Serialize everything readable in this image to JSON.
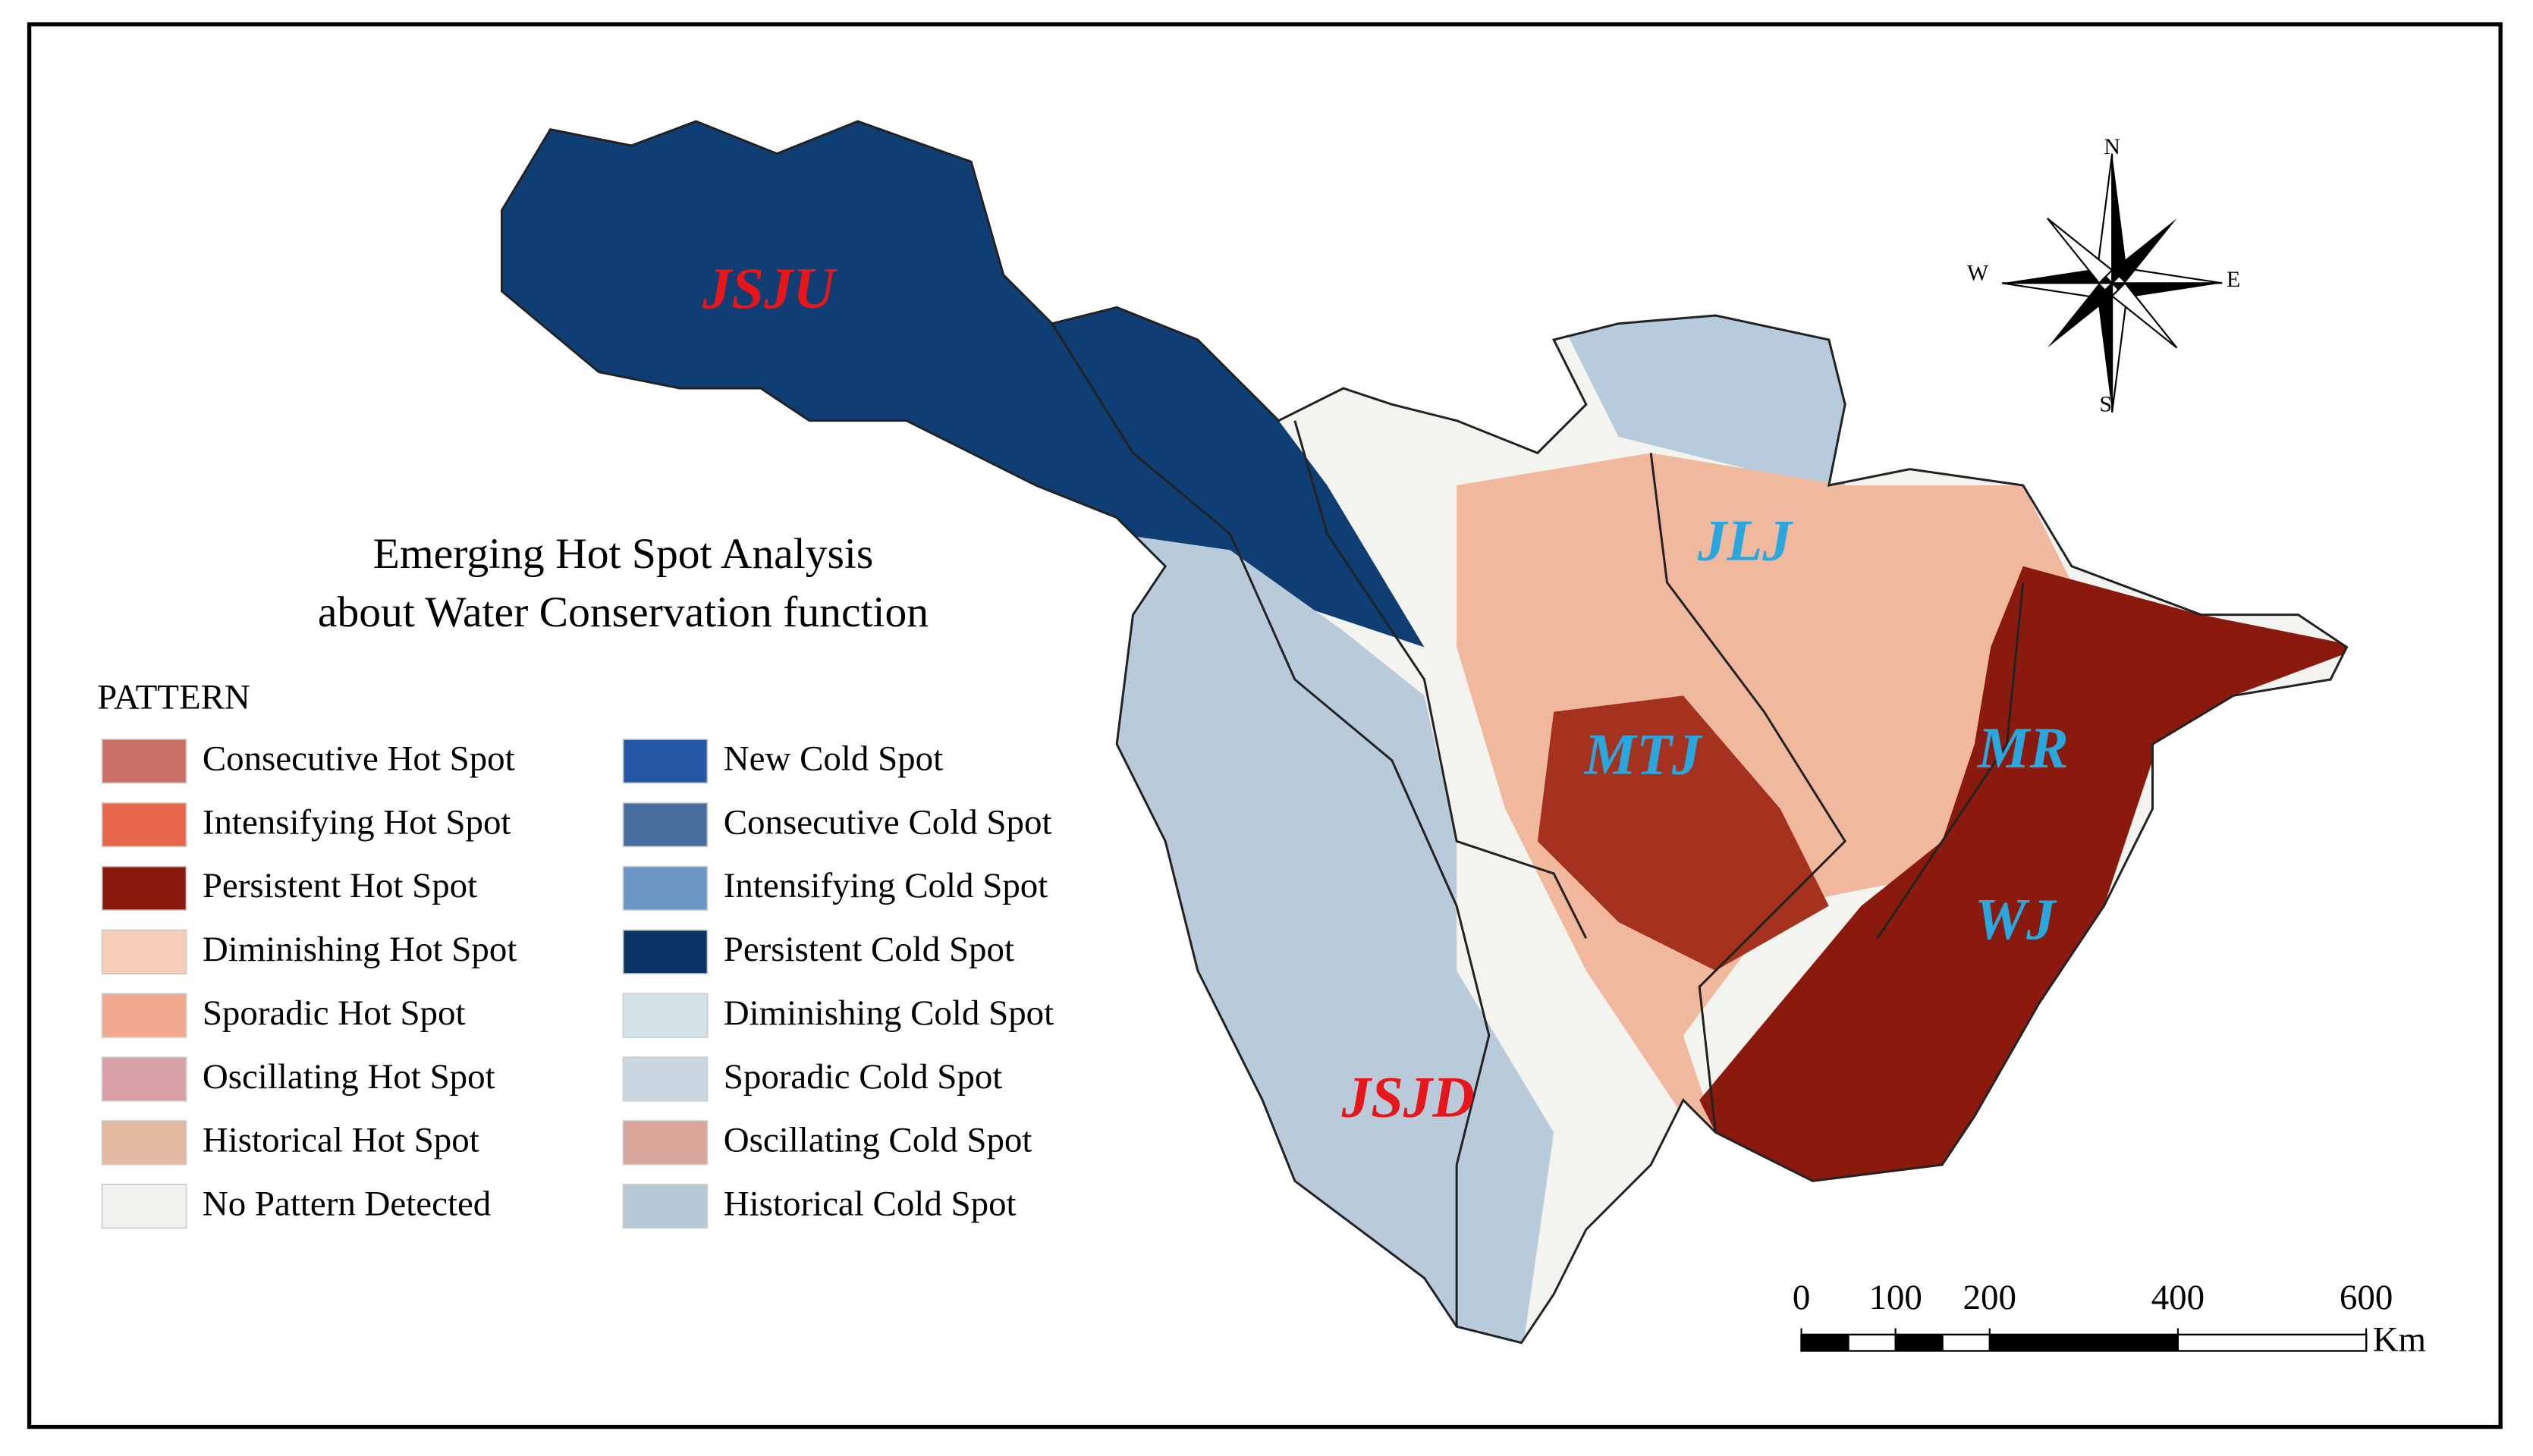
{
  "title": {
    "lines": [
      "Emerging Hot Spot Analysis",
      "about Water Conservation function"
    ]
  },
  "legend": {
    "title": "PATTERN",
    "columns": [
      [
        {
          "label": "Consecutive Hot Spot",
          "color": "#c87066"
        },
        {
          "label": "Intensifying Hot Spot",
          "color": "#e8664c"
        },
        {
          "label": "Persistent Hot Spot",
          "color": "#8b1a0e"
        },
        {
          "label": "Diminishing Hot Spot",
          "color": "#f6cdb6"
        },
        {
          "label": "Sporadic Hot Spot",
          "color": "#f0a98c"
        },
        {
          "label": "Oscillating Hot Spot",
          "color": "#d9a0a8"
        },
        {
          "label": "Historical Hot Spot",
          "color": "#e3b8a0"
        },
        {
          "label": "No Pattern Detected",
          "color": "#f2f2ee"
        }
      ],
      [
        {
          "label": "New Cold Spot",
          "color": "#2457a4"
        },
        {
          "label": "Consecutive Cold Spot",
          "color": "#4a6e9c"
        },
        {
          "label": "Intensifying Cold Spot",
          "color": "#6b95c4"
        },
        {
          "label": "Persistent Cold Spot",
          "color": "#0c3466"
        },
        {
          "label": "Diminishing Cold Spot",
          "color": "#d4e2ea"
        },
        {
          "label": "Sporadic Cold Spot",
          "color": "#c9d7e3"
        },
        {
          "label": "Oscillating Cold Spot",
          "color": "#d9a49a"
        },
        {
          "label": "Historical Cold Spot",
          "color": "#b6c7d5"
        }
      ]
    ]
  },
  "regions": [
    {
      "label": "JSJU",
      "color": "#e8151b"
    },
    {
      "label": "JLJ",
      "color": "#29a8e0"
    },
    {
      "label": "MTJ",
      "color": "#29a8e0"
    },
    {
      "label": "MR",
      "color": "#29a8e0"
    },
    {
      "label": "WJ",
      "color": "#29a8e0"
    },
    {
      "label": "JSJD",
      "color": "#e8151b"
    }
  ],
  "compass": {
    "north": "N",
    "east": "E",
    "south": "S",
    "west": "W"
  },
  "scale_bar": {
    "ticks": [
      0,
      100,
      200,
      400,
      600
    ],
    "unit": "Km"
  }
}
